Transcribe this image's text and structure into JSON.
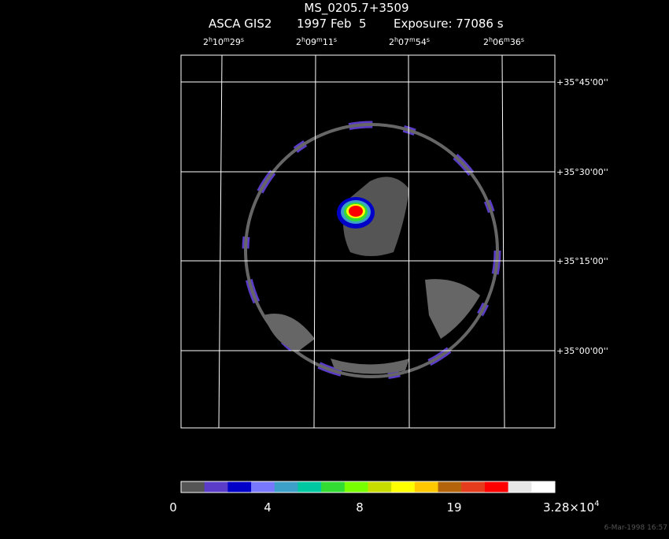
{
  "header": {
    "title": "MS_0205.7+3509",
    "instrument": "ASCA GIS2",
    "date": "1997 Feb  5",
    "exposure": "Exposure: 77086 s"
  },
  "ra_labels": [
    [
      "2",
      "h",
      "10",
      "m",
      "29",
      "s"
    ],
    [
      "2",
      "h",
      "09",
      "m",
      "11",
      "s"
    ],
    [
      "2",
      "h",
      "07",
      "m",
      "54",
      "s"
    ],
    [
      "2",
      "h",
      "06",
      "m",
      "36",
      "s"
    ]
  ],
  "dec_labels": [
    "+35°45'00''",
    "+35°30'00''",
    "+35°15'00''",
    "+35°00'00''"
  ],
  "colorbar": {
    "colors": [
      "#555555",
      "#5a3cc8",
      "#0000c8",
      "#7878ff",
      "#3ca0c8",
      "#00c8a0",
      "#32dc32",
      "#78ff00",
      "#c8dc00",
      "#ffff00",
      "#ffc800",
      "#b4640a",
      "#e63c1e",
      "#ff0000",
      "#e6e6e6",
      "#ffffff"
    ],
    "labels": [
      "0",
      "4",
      "8",
      "19"
    ],
    "max_label": {
      "mantissa": "3.28×10",
      "exponent": "4"
    }
  },
  "footer": "6-Mar-1998 16:57"
}
